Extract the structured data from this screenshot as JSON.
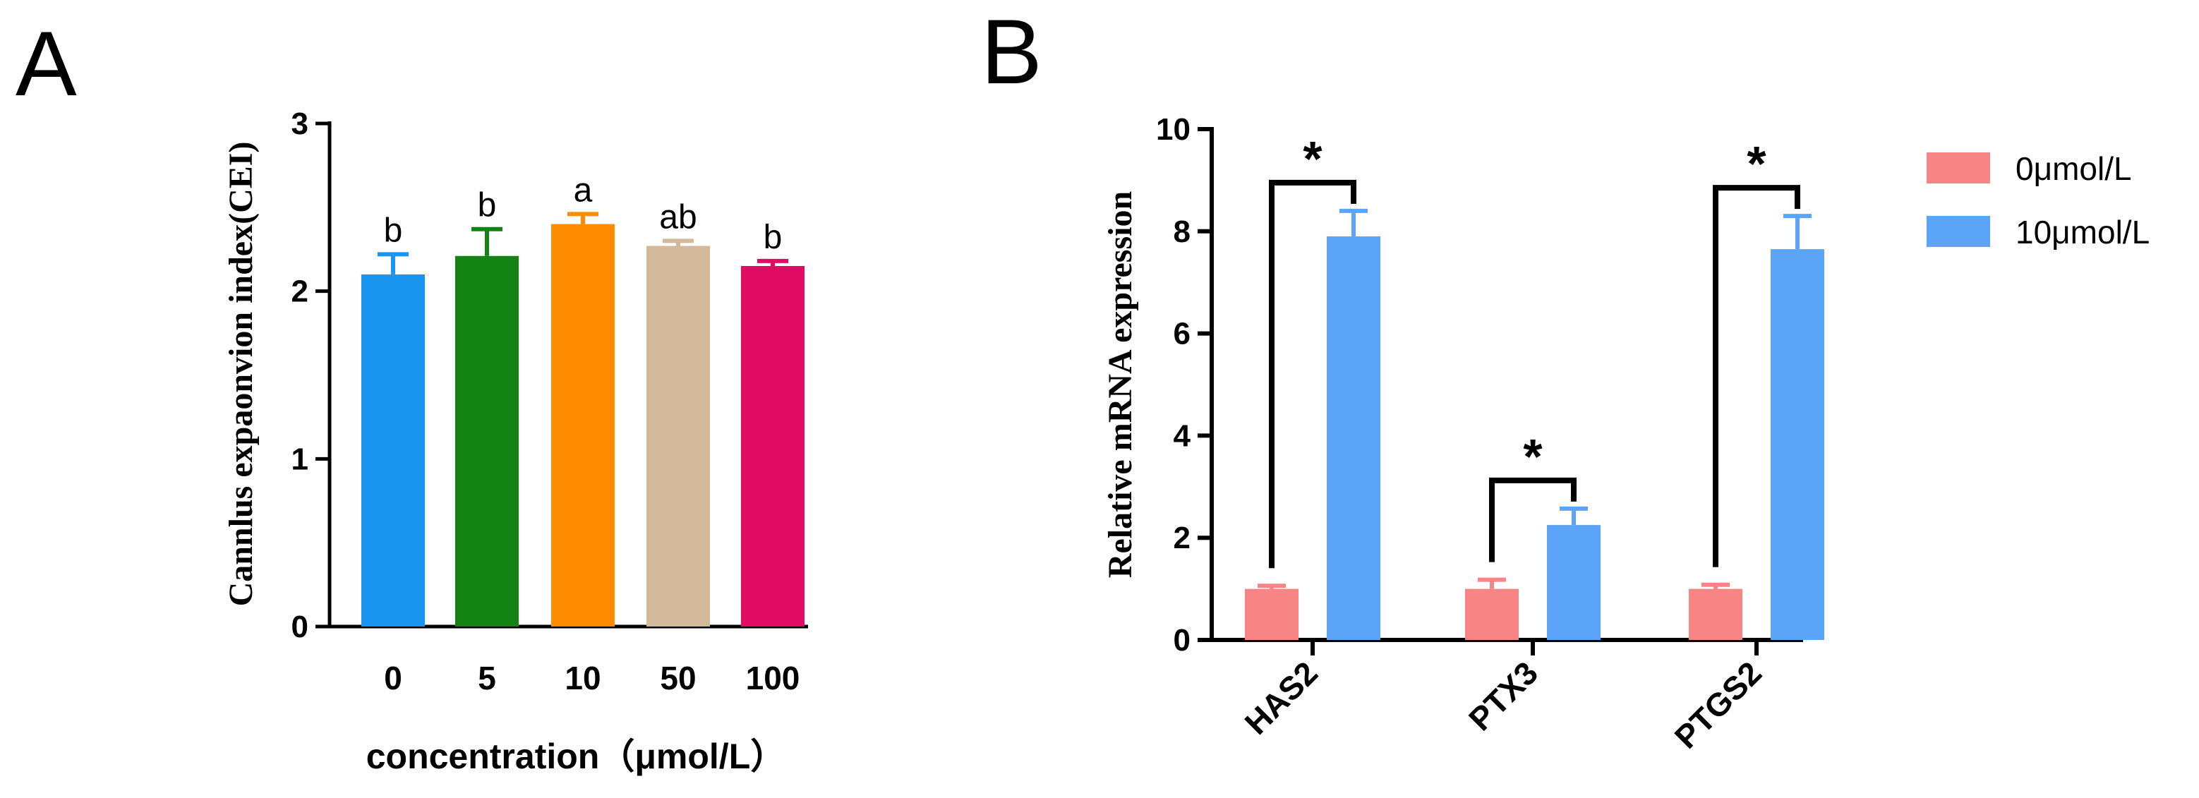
{
  "chart_data": [
    {
      "panel": "A",
      "type": "bar",
      "categories": [
        "0",
        "5",
        "10",
        "50",
        "100"
      ],
      "values": [
        2.1,
        2.21,
        2.4,
        2.27,
        2.15
      ],
      "errors": [
        0.12,
        0.16,
        0.06,
        0.03,
        0.03
      ],
      "letters": [
        "b",
        "b",
        "a",
        "ab",
        "b"
      ],
      "colors": [
        "#1a95f0",
        "#138413",
        "#ff8c00",
        "#d2b99a",
        "#e00b62"
      ],
      "xlabel": "concentration（μmol/L）",
      "ylabel": "Cannlus expaonvion index(CEI)",
      "ylim": [
        0,
        3
      ],
      "yticks": [
        "0",
        "1",
        "2",
        "3"
      ],
      "grid": false
    },
    {
      "panel": "B",
      "type": "bar",
      "categories": [
        "HAS2",
        "PTX3",
        "PTGS2"
      ],
      "series": [
        {
          "name": "0μmol/L",
          "color": "#f78585",
          "values": [
            1.0,
            1.0,
            1.0
          ],
          "errors": [
            0.06,
            0.18,
            0.08
          ]
        },
        {
          "name": "10μmol/L",
          "color": "#5ca4f8",
          "values": [
            7.9,
            2.25,
            7.65
          ],
          "errors": [
            0.5,
            0.32,
            0.65
          ]
        }
      ],
      "significance": [
        "*",
        "*",
        "*"
      ],
      "xlabel": "",
      "ylabel": "Relative mRNA expression",
      "ylim": [
        0,
        10
      ],
      "yticks": [
        "0",
        "2",
        "4",
        "6",
        "8",
        "10"
      ],
      "legend_position": "top-right",
      "grid": false
    }
  ],
  "panels": {
    "a_label": "A",
    "b_label": "B"
  }
}
